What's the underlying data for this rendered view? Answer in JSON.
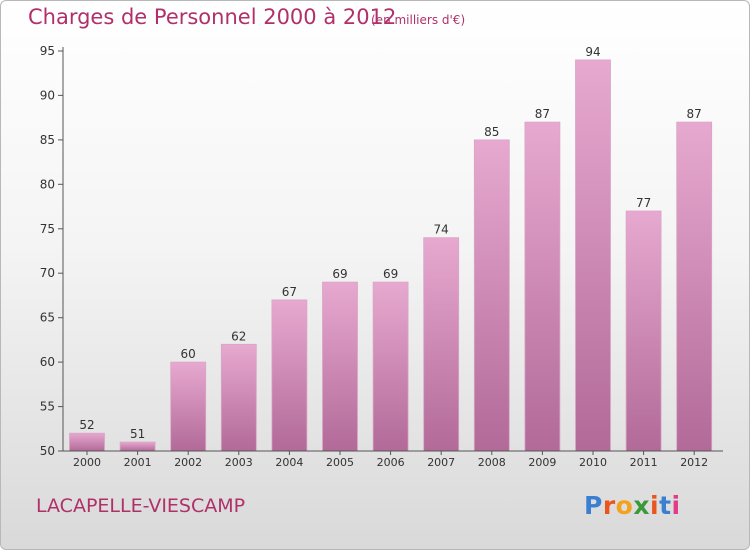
{
  "header": {
    "title": "Charges de Personnel 2000 à 2012",
    "subtitle": "(en milliers d'€)"
  },
  "footer": {
    "commune": "LACAPELLE-VIESCAMP",
    "logo_letters": [
      "P",
      "r",
      "o",
      "x",
      "i",
      "t",
      "i"
    ],
    "logo_colors": [
      "#3a7fd0",
      "#e8551e",
      "#f2a21c",
      "#3a9a3a",
      "#e8551e",
      "#3a7fd0",
      "#e23b8a"
    ]
  },
  "colors": {
    "bar_top": "#e7a9d0",
    "bar_bottom": "#b26a98",
    "text_accent": "#b0306a",
    "axis": "#555555"
  },
  "chart_data": {
    "type": "bar",
    "categories": [
      "2000",
      "2001",
      "2002",
      "2003",
      "2004",
      "2005",
      "2006",
      "2007",
      "2008",
      "2009",
      "2010",
      "2011",
      "2012"
    ],
    "values": [
      52,
      51,
      60,
      62,
      67,
      69,
      69,
      74,
      85,
      87,
      94,
      77,
      87
    ],
    "title": "Charges de Personnel 2000 à 2012",
    "subtitle": "(en milliers d'€)",
    "xlabel": "",
    "ylabel": "",
    "ylim": [
      50,
      95
    ],
    "yticks": [
      50,
      55,
      60,
      65,
      70,
      75,
      80,
      85,
      90,
      95
    ],
    "grid": false,
    "data_labels": true
  }
}
